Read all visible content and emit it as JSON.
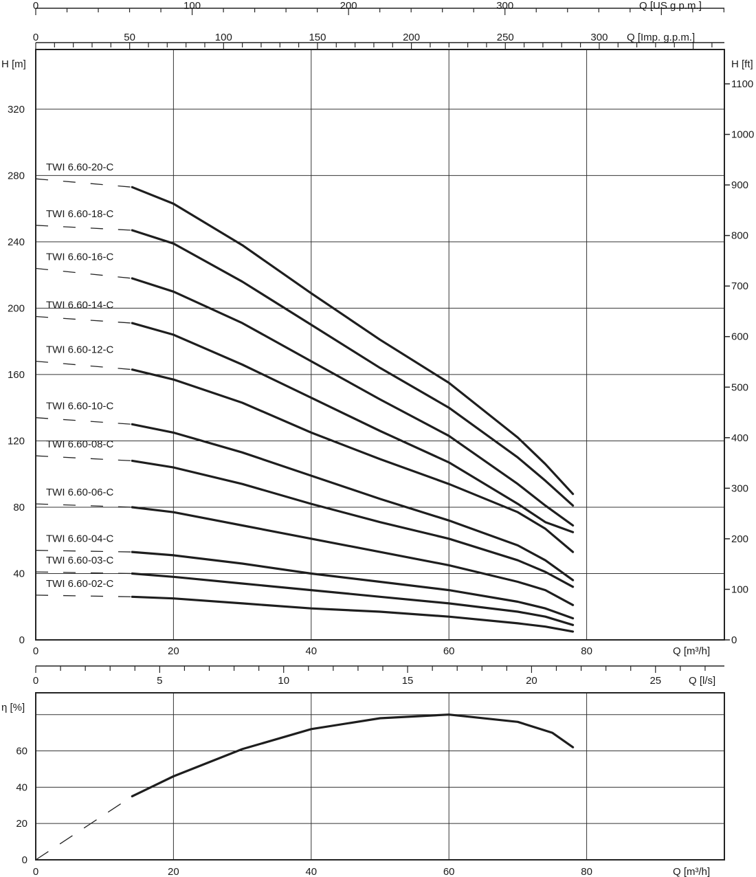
{
  "chart_data": [
    {
      "type": "line",
      "title": "",
      "xlabel": "Q [m³/h]",
      "ylabel": "H [m]",
      "ylabel_right": "H [ft]",
      "xlim": [
        0,
        100
      ],
      "ylim": [
        0,
        356
      ],
      "y_ticks": [
        0,
        40,
        80,
        120,
        160,
        200,
        240,
        280,
        320
      ],
      "x_ticks": [
        0,
        20,
        40,
        60,
        80
      ],
      "y_right_ticks": [
        0,
        100,
        200,
        300,
        400,
        500,
        600,
        700,
        800,
        900,
        1000,
        1100
      ],
      "top_axes": [
        {
          "label": "Q [US g.p.m.]",
          "ticks": [
            0,
            100,
            200,
            300
          ],
          "factor": 4.4029
        },
        {
          "label": "Q [Imp. g.p.m.]",
          "ticks": [
            0,
            50,
            100,
            150,
            200,
            250,
            300
          ],
          "factor": 3.6662
        }
      ],
      "secondary_x_axis": {
        "label": "Q [l/s]",
        "ticks": [
          0,
          5,
          10,
          15,
          20,
          25
        ],
        "factor": 0.27778
      },
      "grid": true,
      "dashed_segment_range": [
        0,
        14
      ],
      "x": [
        0,
        14,
        20,
        30,
        40,
        50,
        60,
        70,
        74,
        78
      ],
      "series": [
        {
          "name": "TWI 6.60-20-C",
          "values": [
            278,
            273,
            263,
            238,
            209,
            181,
            155,
            122,
            106,
            88
          ]
        },
        {
          "name": "TWI 6.60-18-C",
          "values": [
            250,
            247,
            239,
            216,
            190,
            164,
            140,
            110,
            96,
            81
          ]
        },
        {
          "name": "TWI 6.60-16-C",
          "values": [
            224,
            218,
            210,
            191,
            168,
            145,
            123,
            94,
            81,
            69
          ]
        },
        {
          "name": "TWI 6.60-14-C",
          "values": [
            195,
            191,
            184,
            166,
            146,
            126,
            107,
            82,
            71,
            65
          ]
        },
        {
          "name": "TWI 6.60-12-C",
          "values": [
            168,
            163,
            157,
            143,
            125,
            109,
            94,
            77,
            67,
            53
          ]
        },
        {
          "name": "TWI 6.60-10-C",
          "values": [
            134,
            130,
            125,
            113,
            99,
            85,
            72,
            57,
            48,
            36
          ]
        },
        {
          "name": "TWI 6.60-08-C",
          "values": [
            111,
            108,
            104,
            94,
            82,
            71,
            61,
            48,
            41,
            32
          ]
        },
        {
          "name": "TWI 6.60-06-C",
          "values": [
            82,
            80,
            77,
            69,
            61,
            53,
            45,
            35,
            30,
            21
          ]
        },
        {
          "name": "TWI 6.60-04-C",
          "values": [
            54,
            53,
            51,
            46,
            40,
            35,
            30,
            23,
            19,
            13
          ]
        },
        {
          "name": "TWI 6.60-03-C",
          "values": [
            41,
            40,
            38,
            34,
            30,
            26,
            22,
            17,
            14,
            9
          ]
        },
        {
          "name": "TWI 6.60-02-C",
          "values": [
            27,
            26,
            25,
            22,
            19,
            17,
            14,
            10,
            8,
            5
          ]
        }
      ]
    },
    {
      "type": "line",
      "title": "",
      "xlabel": "Q [m³/h]",
      "ylabel": "η [%]",
      "xlim": [
        0,
        100
      ],
      "ylim": [
        0,
        92
      ],
      "y_ticks": [
        0,
        20,
        40,
        60
      ],
      "x_ticks": [
        0,
        20,
        40,
        60,
        80
      ],
      "grid": true,
      "grid_y": [
        0,
        20,
        40,
        60,
        80
      ],
      "dashed_segment_range": [
        0,
        14
      ],
      "x": [
        0,
        14,
        20,
        30,
        40,
        50,
        60,
        70,
        75,
        78
      ],
      "series": [
        {
          "name": "",
          "values": [
            0,
            35,
            46,
            61,
            72,
            78,
            80,
            76,
            70,
            62
          ]
        }
      ]
    }
  ]
}
